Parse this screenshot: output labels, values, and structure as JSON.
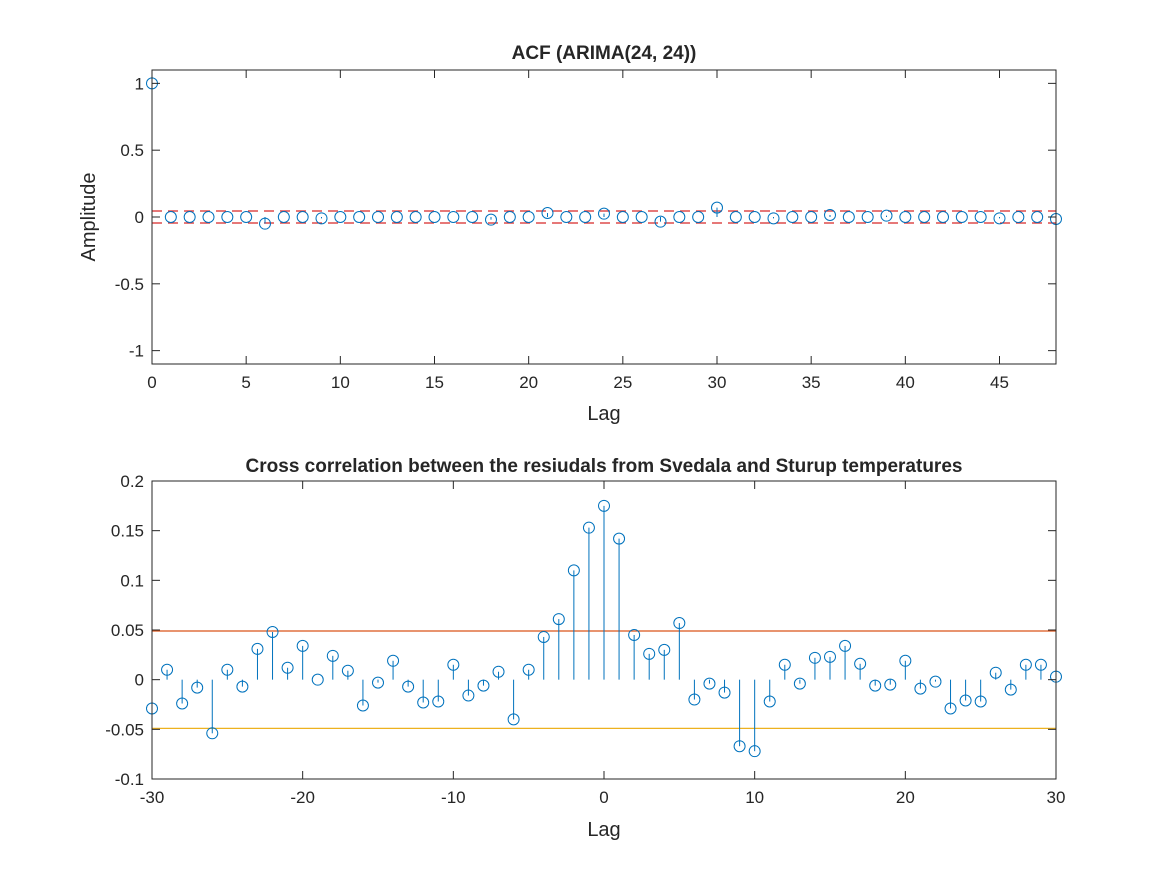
{
  "chart_data": [
    {
      "type": "stem",
      "title": "ACF (ARIMA(24, 24))",
      "xlabel": "Lag",
      "ylabel": "Amplitude",
      "xlim": [
        0,
        48
      ],
      "ylim": [
        -1.1,
        1.1
      ],
      "xticks": [
        0,
        5,
        10,
        15,
        20,
        25,
        30,
        35,
        40,
        45
      ],
      "yticks": [
        -1,
        -0.5,
        0,
        0.5,
        1
      ],
      "xtick_labels": [
        "0",
        "5",
        "10",
        "15",
        "20",
        "25",
        "30",
        "35",
        "40",
        "45"
      ],
      "ytick_labels": [
        "-1",
        "-0.5",
        "0",
        "0.5",
        "1"
      ],
      "grid": false,
      "series": [
        {
          "color": "#0072BD",
          "x": [
            0,
            1,
            2,
            3,
            4,
            5,
            6,
            7,
            8,
            9,
            10,
            11,
            12,
            13,
            14,
            15,
            16,
            17,
            18,
            19,
            20,
            21,
            22,
            23,
            24,
            25,
            26,
            27,
            28,
            29,
            30,
            31,
            32,
            33,
            34,
            35,
            36,
            37,
            38,
            39,
            40,
            41,
            42,
            43,
            44,
            45,
            46,
            47,
            48
          ],
          "values": [
            1,
            0,
            0,
            0,
            0,
            0,
            -0.05,
            0,
            0,
            -0.01,
            0,
            0,
            0,
            0,
            0,
            0,
            0,
            0,
            -0.02,
            0,
            0,
            0.03,
            0,
            0,
            0.025,
            0,
            0,
            -0.035,
            0,
            0,
            0.07,
            0,
            0,
            -0.01,
            0,
            0,
            0.015,
            0,
            0,
            0.01,
            0,
            0,
            0,
            0,
            0,
            -0.01,
            0,
            0,
            -0.015
          ]
        }
      ],
      "reference_lines": [
        {
          "y": 0.045,
          "color": "#D62728",
          "style": "dashed"
        },
        {
          "y": -0.045,
          "color": "#D62728",
          "style": "dashed"
        }
      ]
    },
    {
      "type": "stem",
      "title": "Cross correlation between the resiudals from Svedala and Sturup temperatures",
      "xlabel": "Lag",
      "ylabel": "",
      "xlim": [
        -30,
        30
      ],
      "ylim": [
        -0.1,
        0.2
      ],
      "xticks": [
        -30,
        -20,
        -10,
        0,
        10,
        20,
        30
      ],
      "yticks": [
        -0.1,
        -0.05,
        0,
        0.05,
        0.1,
        0.15,
        0.2
      ],
      "xtick_labels": [
        "-30",
        "-20",
        "-10",
        "0",
        "10",
        "20",
        "30"
      ],
      "ytick_labels": [
        "-0.1",
        "-0.05",
        "0",
        "0.05",
        "0.1",
        "0.15",
        "0.2"
      ],
      "grid": false,
      "series": [
        {
          "color": "#0072BD",
          "x": [
            -30,
            -29,
            -28,
            -27,
            -26,
            -25,
            -24,
            -23,
            -22,
            -21,
            -20,
            -19,
            -18,
            -17,
            -16,
            -15,
            -14,
            -13,
            -12,
            -11,
            -10,
            -9,
            -8,
            -7,
            -6,
            -5,
            -4,
            -3,
            -2,
            -1,
            0,
            1,
            2,
            3,
            4,
            5,
            6,
            7,
            8,
            9,
            10,
            11,
            12,
            13,
            14,
            15,
            16,
            17,
            18,
            19,
            20,
            21,
            22,
            23,
            24,
            25,
            26,
            27,
            28,
            29,
            30
          ],
          "values": [
            -0.029,
            0.01,
            -0.024,
            -0.008,
            -0.054,
            0.01,
            -0.007,
            0.031,
            0.048,
            0.012,
            0.034,
            0,
            0.024,
            0.009,
            -0.026,
            -0.003,
            0.019,
            -0.007,
            -0.023,
            -0.022,
            0.015,
            -0.016,
            -0.006,
            0.008,
            -0.04,
            0.01,
            0.043,
            0.061,
            0.11,
            0.153,
            0.175,
            0.142,
            0.045,
            0.026,
            0.03,
            0.057,
            -0.02,
            -0.004,
            -0.013,
            -0.067,
            -0.072,
            -0.022,
            0.015,
            -0.004,
            0.022,
            0.023,
            0.034,
            0.016,
            -0.006,
            -0.005,
            0.019,
            -0.009,
            -0.002,
            -0.029,
            -0.021,
            -0.022,
            0.007,
            -0.01,
            0.015,
            0.015,
            0.003
          ]
        }
      ],
      "reference_lines": [
        {
          "y": 0.049,
          "color": "#D95319",
          "style": "solid"
        },
        {
          "y": -0.049,
          "color": "#EDB120",
          "style": "solid"
        }
      ]
    }
  ]
}
